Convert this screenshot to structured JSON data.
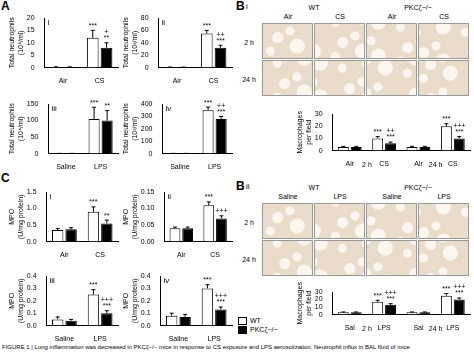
{
  "chart_data": [
    {
      "type": "bar",
      "title": "i",
      "y_label": [
        "Total neutrophils",
        "(10⁴/ml)"
      ],
      "categories": [
        "Air",
        "CS"
      ],
      "series": [
        {
          "name": "WT",
          "color": "#ffffff",
          "values": [
            0.2,
            12
          ],
          "errors": [
            0.1,
            3
          ],
          "marks": [
            null,
            [
              "***"
            ]
          ]
        },
        {
          "name": "PKCζ−/−",
          "color": "#000000",
          "values": [
            0.2,
            8
          ],
          "errors": [
            0.1,
            2
          ],
          "marks": [
            null,
            [
              "+",
              "**"
            ]
          ]
        }
      ],
      "ylim": [
        0,
        20
      ],
      "yticks": [
        0,
        5,
        10,
        15,
        20
      ],
      "grid": false
    },
    {
      "type": "bar",
      "title": "ii",
      "y_label": [
        "Total neutrophils",
        "(10³/ml)"
      ],
      "categories": [
        "Air",
        "CS"
      ],
      "series": [
        {
          "name": "WT",
          "color": "#ffffff",
          "values": [
            0.5,
            55
          ],
          "errors": [
            0.3,
            5
          ],
          "marks": [
            null,
            [
              "***"
            ]
          ]
        },
        {
          "name": "PKCζ−/−",
          "color": "#000000",
          "values": [
            0.5,
            32
          ],
          "errors": [
            0.3,
            4
          ],
          "marks": [
            null,
            [
              "++",
              "***"
            ]
          ]
        }
      ],
      "ylim": [
        0,
        80
      ],
      "yticks": [
        0,
        20,
        40,
        60,
        80
      ],
      "grid": false
    },
    {
      "type": "bar",
      "title": "iii",
      "y_label": [
        "Total neutrophils",
        "(10⁴/ml)"
      ],
      "categories": [
        "Saline",
        "LPS"
      ],
      "series": [
        {
          "name": "WT",
          "color": "#ffffff",
          "values": [
            0.5,
            105
          ],
          "errors": [
            0.3,
            35
          ],
          "marks": [
            null,
            [
              "***"
            ]
          ]
        },
        {
          "name": "PKCζ−/−",
          "color": "#000000",
          "values": [
            0.5,
            100
          ],
          "errors": [
            0.3,
            30
          ],
          "marks": [
            null,
            [
              "**"
            ]
          ]
        }
      ],
      "ylim": [
        0,
        150
      ],
      "yticks": [
        0,
        50,
        100,
        150
      ],
      "grid": false
    },
    {
      "type": "bar",
      "title": "iv",
      "y_label": [
        "Total neutrophils",
        "(10³/ml)"
      ],
      "categories": [
        "Saline",
        "LPS"
      ],
      "series": [
        {
          "name": "WT",
          "color": "#ffffff",
          "values": [
            1,
            350
          ],
          "errors": [
            1,
            25
          ],
          "marks": [
            null,
            [
              "***"
            ]
          ]
        },
        {
          "name": "PKCζ−/−",
          "color": "#000000",
          "values": [
            1,
            280
          ],
          "errors": [
            1,
            20
          ],
          "marks": [
            null,
            [
              "++",
              "***"
            ]
          ]
        }
      ],
      "ylim": [
        0,
        400
      ],
      "yticks": [
        0,
        100,
        200,
        300,
        400
      ],
      "grid": false
    },
    {
      "type": "bar",
      "title": "i",
      "y_label": [
        "MPO",
        "(U/mg protein)"
      ],
      "categories": [
        "Air",
        "CS"
      ],
      "series": [
        {
          "name": "WT",
          "color": "#ffffff",
          "values": [
            0.35,
            0.9
          ],
          "errors": [
            0.05,
            0.15
          ],
          "marks": [
            null,
            [
              "***"
            ]
          ]
        },
        {
          "name": "PKCζ−/−",
          "color": "#000000",
          "values": [
            0.37,
            0.55
          ],
          "errors": [
            0.05,
            0.1
          ],
          "marks": [
            null,
            [
              "**"
            ]
          ]
        }
      ],
      "ylim": [
        0,
        1.5
      ],
      "yticks": [
        {
          "value": 0,
          "label": "0.0"
        },
        0.5,
        {
          "value": 1,
          "label": "1.0"
        },
        1.5
      ],
      "grid": false
    },
    {
      "type": "bar",
      "title": "ii",
      "y_label": [
        "MPO",
        "(U/mg protein)"
      ],
      "categories": [
        "Air",
        "CS"
      ],
      "series": [
        {
          "name": "WT",
          "color": "#ffffff",
          "values": [
            0.04,
            0.11
          ],
          "errors": [
            0.004,
            0.01
          ],
          "marks": [
            null,
            [
              "***"
            ]
          ]
        },
        {
          "name": "PKCζ−/−",
          "color": "#000000",
          "values": [
            0.04,
            0.07
          ],
          "errors": [
            0.004,
            0.008
          ],
          "marks": [
            null,
            [
              "+++"
            ]
          ]
        }
      ],
      "ylim": [
        0,
        0.15
      ],
      "yticks": [
        {
          "value": 0,
          "label": "0.00"
        },
        0.05,
        {
          "value": 0.1,
          "label": "0.10"
        },
        0.15
      ],
      "grid": false
    },
    {
      "type": "bar",
      "title": "iii",
      "y_label": [
        "MPO",
        "(U/mg protein)"
      ],
      "categories": [
        "Saline",
        "LPS"
      ],
      "series": [
        {
          "name": "WT",
          "color": "#ffffff",
          "values": [
            0.05,
            0.25
          ],
          "errors": [
            0.02,
            0.04
          ],
          "marks": [
            null,
            [
              "***"
            ]
          ]
        },
        {
          "name": "PKCζ−/−",
          "color": "#000000",
          "values": [
            0.04,
            0.1
          ],
          "errors": [
            0.01,
            0.02
          ],
          "marks": [
            null,
            [
              "+++",
              "***"
            ]
          ]
        }
      ],
      "ylim": [
        0,
        0.4
      ],
      "yticks": [
        {
          "value": 0,
          "label": "0.0"
        },
        0.1,
        0.2,
        0.3,
        0.4
      ],
      "grid": false
    },
    {
      "type": "bar",
      "title": "iv",
      "y_label": [
        "MPO",
        "(U/mg protein)"
      ],
      "categories": [
        "Saline",
        "LPS"
      ],
      "series": [
        {
          "name": "WT",
          "color": "#ffffff",
          "values": [
            0.08,
            0.3
          ],
          "errors": [
            0.02,
            0.03
          ],
          "marks": [
            null,
            [
              "***"
            ]
          ]
        },
        {
          "name": "PKCζ−/−",
          "color": "#000000",
          "values": [
            0.07,
            0.13
          ],
          "errors": [
            0.02,
            0.02
          ],
          "marks": [
            null,
            [
              "+++",
              "***"
            ]
          ]
        }
      ],
      "ylim": [
        0,
        0.4
      ],
      "yticks": [
        {
          "value": 0,
          "label": "0.0"
        },
        0.1,
        0.2,
        0.3,
        0.4
      ],
      "grid": false
    },
    {
      "type": "bar",
      "y_label": [
        "Macrophages",
        "per field"
      ],
      "categories": [
        "Air",
        "CS",
        "Air",
        "CS"
      ],
      "groups": [
        "2 h",
        "24 h"
      ],
      "series": [
        {
          "name": "WT",
          "color": "#ffffff",
          "values": [
            3,
            10,
            3,
            20
          ],
          "errors": [
            0.5,
            1.5,
            0.5,
            2
          ],
          "marks": [
            null,
            [
              "***"
            ],
            null,
            [
              "***"
            ]
          ]
        },
        {
          "name": "PKCζ−/−",
          "color": "#000000",
          "values": [
            3,
            6,
            3,
            10
          ],
          "errors": [
            0.5,
            1,
            0.5,
            1.5
          ],
          "marks": [
            null,
            [
              "++",
              "***"
            ],
            null,
            [
              "+++",
              "***"
            ]
          ]
        }
      ],
      "ylim": [
        0,
        30
      ],
      "yticks": [
        0,
        10,
        20,
        30
      ],
      "grid": false
    },
    {
      "type": "bar",
      "y_label": [
        "Macrophages",
        "per field"
      ],
      "categories": [
        "Sal",
        "LPS",
        "Sal",
        "LPS"
      ],
      "groups": [
        "2 h",
        "24 h"
      ],
      "series": [
        {
          "name": "WT",
          "color": "#ffffff",
          "values": [
            3,
            17,
            3,
            25
          ],
          "errors": [
            0.5,
            2,
            0.5,
            3
          ],
          "marks": [
            null,
            [
              "***"
            ],
            null,
            [
              "***"
            ]
          ]
        },
        {
          "name": "PKCζ−/−",
          "color": "#000000",
          "values": [
            3,
            13,
            3,
            20
          ],
          "errors": [
            0.5,
            1.5,
            0.5,
            2
          ],
          "marks": [
            null,
            [
              "+++",
              "***"
            ],
            null,
            [
              "+++",
              "***"
            ]
          ]
        }
      ],
      "ylim": [
        0,
        30
      ],
      "yticks": [
        0,
        10,
        20,
        30
      ],
      "grid": false,
      "legend": "bottom left"
    }
  ],
  "micrographs": [
    {
      "groups": [
        "WT",
        "PKCζ−/−"
      ],
      "columns": [
        "Air",
        "CS",
        "Air",
        "CS"
      ],
      "rows": [
        "2 h",
        "24 h"
      ]
    },
    {
      "groups": [
        "WT",
        "PKCζ−/−"
      ],
      "columns": [
        "Saline",
        "LPS",
        "Saline",
        "LPS"
      ],
      "rows": [
        "2 h",
        "24 h"
      ]
    }
  ],
  "panel_labels": [
    [
      "A"
    ],
    [
      "B",
      "i"
    ],
    [
      "B",
      "ii"
    ],
    [
      "C"
    ]
  ],
  "caption": "FIGURE 1 | Lung inflammation was decreased in PKCζ−/− mice in response to CS exposure and LPS aerosolization. Neutrophil influx in BAL fluid of mice"
}
